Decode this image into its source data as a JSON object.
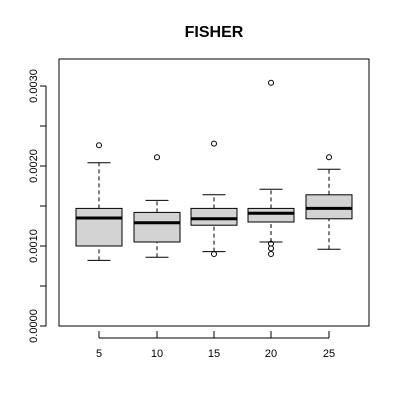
{
  "chart_data": {
    "type": "boxplot",
    "title": "FISHER",
    "xlabel": "",
    "ylabel": "",
    "categories": [
      "5",
      "10",
      "15",
      "20",
      "25"
    ],
    "ylim": [
      0,
      0.0033
    ],
    "yticks": [
      0,
      0.001,
      0.002,
      0.003
    ],
    "ytick_labels": [
      "0.0000",
      "0.0010",
      "0.0020",
      "0.0030"
    ],
    "colors": {
      "box_fill": "#d3d3d3",
      "stroke": "#000000",
      "background": "#ffffff"
    },
    "boxes": [
      {
        "category": "5",
        "whisker_low": 0.00082,
        "q1": 0.001,
        "median": 0.00135,
        "q3": 0.00147,
        "whisker_high": 0.00204,
        "outliers": [
          0.00226
        ]
      },
      {
        "category": "10",
        "whisker_low": 0.00086,
        "q1": 0.00105,
        "median": 0.00129,
        "q3": 0.00142,
        "whisker_high": 0.00157,
        "outliers": [
          0.00211
        ]
      },
      {
        "category": "15",
        "whisker_low": 0.00093,
        "q1": 0.00126,
        "median": 0.00134,
        "q3": 0.00147,
        "whisker_high": 0.00164,
        "outliers": [
          0.00228,
          0.0009
        ]
      },
      {
        "category": "20",
        "whisker_low": 0.00105,
        "q1": 0.0013,
        "median": 0.00141,
        "q3": 0.00147,
        "whisker_high": 0.00171,
        "outliers": [
          0.00304,
          0.00103,
          0.00097,
          0.0009
        ]
      },
      {
        "category": "25",
        "whisker_low": 0.00096,
        "q1": 0.00134,
        "median": 0.00147,
        "q3": 0.00164,
        "whisker_high": 0.00196,
        "outliers": [
          0.00211
        ]
      }
    ]
  }
}
